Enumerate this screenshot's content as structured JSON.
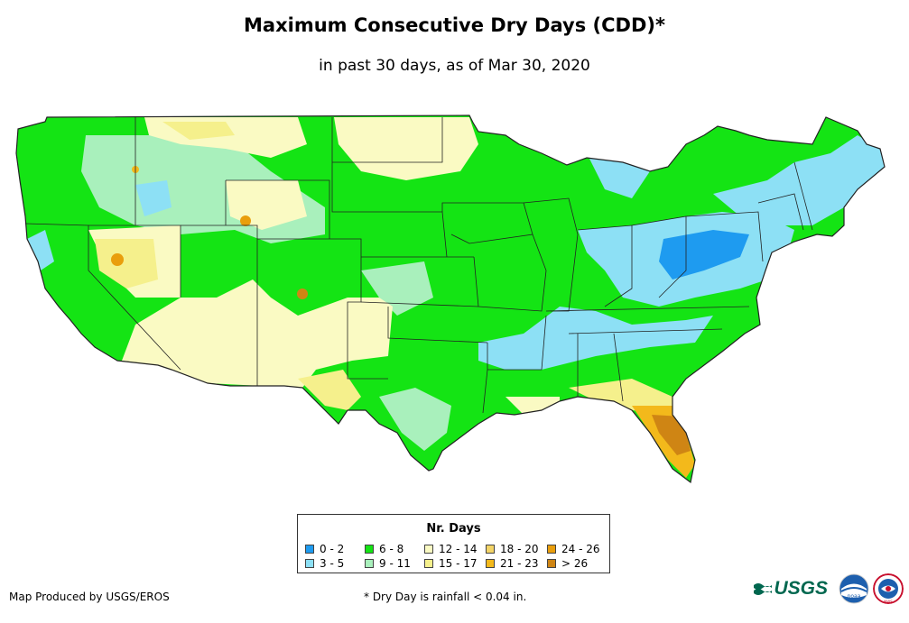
{
  "header": {
    "title": "Maximum Consecutive Dry Days (CDD)*",
    "subtitle": "in past 30 days, as of Mar 30, 2020"
  },
  "legend": {
    "title": "Nr. Days",
    "items": [
      {
        "label": "0 - 2",
        "color": "#1e9bf0"
      },
      {
        "label": "3 - 5",
        "color": "#8de0f5"
      },
      {
        "label": "6 - 8",
        "color": "#14e414"
      },
      {
        "label": "9 - 11",
        "color": "#a9f0bc"
      },
      {
        "label": "12 - 14",
        "color": "#fafac3"
      },
      {
        "label": "15 - 17",
        "color": "#f5f08c"
      },
      {
        "label": "18 - 20",
        "color": "#f3d467"
      },
      {
        "label": "21 - 23",
        "color": "#f3b91b"
      },
      {
        "label": "24 - 26",
        "color": "#e99e0c"
      },
      {
        "label": "> 26",
        "color": "#cf8514"
      }
    ]
  },
  "footer": {
    "producer": "Map Produced by USGS/EROS",
    "note": "* Dry Day is rainfall < 0.04 in."
  },
  "logos": {
    "usgs_text": "USGS",
    "noaa_text": "noaa",
    "nws_text": "NWS"
  },
  "map": {
    "region": "Contiguous United States",
    "colors": {
      "outline": "#222222"
    }
  }
}
